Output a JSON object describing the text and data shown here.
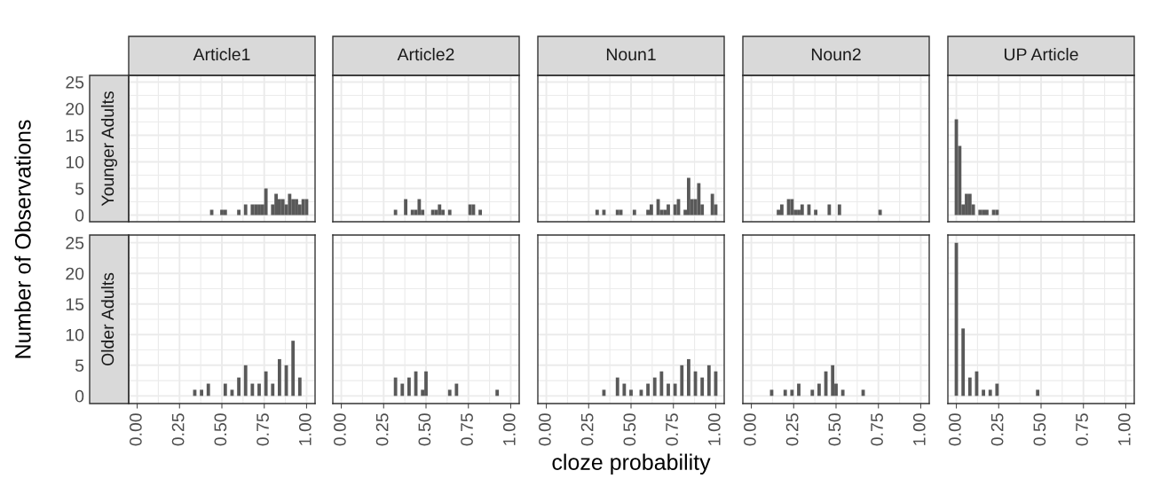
{
  "chart_data": [
    {
      "type": "histogram",
      "title": "Article1",
      "subtitle": "Younger Adults",
      "ylabel": "Number of Observations",
      "color": "#595959",
      "grid": true,
      "tick_labels": "y",
      "xlim": [
        -0.05,
        1.05
      ],
      "ylim": [
        -1.25,
        26.25
      ],
      "xticks": [
        0,
        0.25,
        0.5,
        0.75,
        1
      ],
      "yticks": [
        0,
        5,
        10,
        15,
        20,
        25
      ],
      "bins": [
        -0.01,
        0.01,
        0.03,
        0.05,
        0.07,
        0.09,
        0.11,
        0.13,
        0.15,
        0.17,
        0.19,
        0.21,
        0.23,
        0.25,
        0.27,
        0.29,
        0.31,
        0.33,
        0.35,
        0.37,
        0.39,
        0.41,
        0.43,
        0.45,
        0.47,
        0.49,
        0.51,
        0.53,
        0.55,
        0.57,
        0.59,
        0.61,
        0.63,
        0.65,
        0.67,
        0.69,
        0.71,
        0.73,
        0.75,
        0.77,
        0.79,
        0.81,
        0.83,
        0.85,
        0.87,
        0.89,
        0.91,
        0.93,
        0.95,
        0.97,
        0.99,
        1.01
      ],
      "values": [
        0,
        0,
        0,
        0,
        0,
        0,
        0,
        0,
        0,
        0,
        0,
        0,
        0,
        0,
        0,
        0,
        0,
        0,
        0,
        0,
        0,
        0,
        1,
        0,
        0,
        1,
        1,
        0,
        0,
        0,
        1,
        0,
        2,
        0,
        2,
        2,
        2,
        2,
        5,
        0,
        2,
        4,
        3,
        3,
        2,
        4,
        3,
        3,
        2,
        3,
        3
      ]
    },
    {
      "type": "histogram",
      "title": "Article2",
      "color": "#595959",
      "grid": true,
      "tick_labels": false,
      "xlim": [
        -0.05,
        1.05
      ],
      "ylim": [
        -1.25,
        26.25
      ],
      "xticks": [
        0,
        0.25,
        0.5,
        0.75,
        1
      ],
      "yticks": [
        0,
        5,
        10,
        15,
        20,
        25
      ],
      "bins": [
        -0.01,
        0.01,
        0.03,
        0.05,
        0.07,
        0.09,
        0.11,
        0.13,
        0.15,
        0.17,
        0.19,
        0.21,
        0.23,
        0.25,
        0.27,
        0.29,
        0.31,
        0.33,
        0.35,
        0.37,
        0.39,
        0.41,
        0.43,
        0.45,
        0.47,
        0.49,
        0.51,
        0.53,
        0.55,
        0.57,
        0.59,
        0.61,
        0.63,
        0.65,
        0.67,
        0.69,
        0.71,
        0.73,
        0.75,
        0.77,
        0.79,
        0.81,
        0.83,
        0.85,
        0.87,
        0.89,
        0.91,
        0.93,
        0.95,
        0.97,
        0.99,
        1.01
      ],
      "values": [
        0,
        0,
        0,
        0,
        0,
        0,
        0,
        0,
        0,
        0,
        0,
        0,
        0,
        0,
        0,
        0,
        1,
        0,
        0,
        3,
        0,
        1,
        1,
        3,
        1,
        0,
        0,
        1,
        1,
        2,
        1,
        0,
        1,
        0,
        0,
        0,
        0,
        0,
        2,
        2,
        0,
        1,
        0,
        0,
        0,
        0,
        0,
        0,
        0,
        0,
        0
      ]
    },
    {
      "type": "histogram",
      "title": "Noun1",
      "color": "#595959",
      "grid": true,
      "tick_labels": false,
      "xlim": [
        -0.05,
        1.05
      ],
      "ylim": [
        -1.25,
        26.25
      ],
      "xticks": [
        0,
        0.25,
        0.5,
        0.75,
        1
      ],
      "yticks": [
        0,
        5,
        10,
        15,
        20,
        25
      ],
      "bins": [
        -0.01,
        0.01,
        0.03,
        0.05,
        0.07,
        0.09,
        0.11,
        0.13,
        0.15,
        0.17,
        0.19,
        0.21,
        0.23,
        0.25,
        0.27,
        0.29,
        0.31,
        0.33,
        0.35,
        0.37,
        0.39,
        0.41,
        0.43,
        0.45,
        0.47,
        0.49,
        0.51,
        0.53,
        0.55,
        0.57,
        0.59,
        0.61,
        0.63,
        0.65,
        0.67,
        0.69,
        0.71,
        0.73,
        0.75,
        0.77,
        0.79,
        0.81,
        0.83,
        0.85,
        0.87,
        0.89,
        0.91,
        0.93,
        0.95,
        0.97,
        0.99,
        1.01
      ],
      "values": [
        0,
        0,
        0,
        0,
        0,
        0,
        0,
        0,
        0,
        0,
        0,
        0,
        0,
        0,
        0,
        1,
        0,
        1,
        0,
        0,
        0,
        1,
        1,
        0,
        0,
        0,
        1,
        0,
        0,
        0,
        1,
        2,
        0,
        3,
        1,
        1,
        2,
        0,
        2,
        3,
        0,
        1,
        7,
        3,
        3,
        6,
        2,
        0,
        0,
        4,
        2
      ]
    },
    {
      "type": "histogram",
      "title": "Noun2",
      "color": "#595959",
      "grid": true,
      "tick_labels": false,
      "xlim": [
        -0.05,
        1.05
      ],
      "ylim": [
        -1.25,
        26.25
      ],
      "xticks": [
        0,
        0.25,
        0.5,
        0.75,
        1
      ],
      "yticks": [
        0,
        5,
        10,
        15,
        20,
        25
      ],
      "bins": [
        -0.01,
        0.01,
        0.03,
        0.05,
        0.07,
        0.09,
        0.11,
        0.13,
        0.15,
        0.17,
        0.19,
        0.21,
        0.23,
        0.25,
        0.27,
        0.29,
        0.31,
        0.33,
        0.35,
        0.37,
        0.39,
        0.41,
        0.43,
        0.45,
        0.47,
        0.49,
        0.51,
        0.53,
        0.55,
        0.57,
        0.59,
        0.61,
        0.63,
        0.65,
        0.67,
        0.69,
        0.71,
        0.73,
        0.75,
        0.77,
        0.79,
        0.81,
        0.83,
        0.85,
        0.87,
        0.89,
        0.91,
        0.93,
        0.95,
        0.97,
        0.99,
        1.01
      ],
      "values": [
        0,
        0,
        0,
        0,
        0,
        0,
        0,
        0,
        1,
        2,
        0,
        3,
        3,
        1,
        1,
        2,
        0,
        2,
        0,
        1,
        0,
        0,
        0,
        2,
        0,
        0,
        2,
        0,
        0,
        0,
        0,
        0,
        0,
        0,
        0,
        0,
        0,
        0,
        1,
        0,
        0,
        0,
        0,
        0,
        0,
        0,
        0,
        0,
        0,
        0,
        0
      ]
    },
    {
      "type": "histogram",
      "title": "UP Article",
      "color": "#595959",
      "grid": true,
      "tick_labels": false,
      "xlim": [
        -0.05,
        1.05
      ],
      "ylim": [
        -1.25,
        26.25
      ],
      "xticks": [
        0,
        0.25,
        0.5,
        0.75,
        1
      ],
      "yticks": [
        0,
        5,
        10,
        15,
        20,
        25
      ],
      "bins": [
        -0.01,
        0.01,
        0.03,
        0.05,
        0.07,
        0.09,
        0.11,
        0.13,
        0.15,
        0.17,
        0.19,
        0.21,
        0.23,
        0.25,
        0.27,
        0.29,
        0.31,
        0.33,
        0.35,
        0.37,
        0.39,
        0.41,
        0.43,
        0.45,
        0.47,
        0.49,
        0.51,
        0.53,
        0.55,
        0.57,
        0.59,
        0.61,
        0.63,
        0.65,
        0.67,
        0.69,
        0.71,
        0.73,
        0.75,
        0.77,
        0.79,
        0.81,
        0.83,
        0.85,
        0.87,
        0.89,
        0.91,
        0.93,
        0.95,
        0.97,
        0.99,
        1.01
      ],
      "values": [
        18,
        13,
        2,
        4,
        4,
        2,
        0,
        1,
        1,
        1,
        0,
        1,
        1,
        0,
        0,
        0,
        0,
        0,
        0,
        0,
        0,
        0,
        0,
        0,
        0,
        0,
        0,
        0,
        0,
        0,
        0,
        0,
        0,
        0,
        0,
        0,
        0,
        0,
        0,
        0,
        0,
        0,
        0,
        0,
        0,
        0,
        0,
        0,
        0,
        0,
        0
      ]
    },
    {
      "type": "histogram",
      "subtitle": "Older Adults",
      "color": "#595959",
      "grid": true,
      "xlim": [
        -0.05,
        1.05
      ],
      "ylim": [
        -1.25,
        26.25
      ],
      "xticks": [
        {
          "value": 0,
          "label": "0.00"
        },
        {
          "value": 0.25,
          "label": "0.25"
        },
        {
          "value": 0.5,
          "label": "0.50"
        },
        {
          "value": 0.75,
          "label": "0.75"
        },
        {
          "value": 1,
          "label": "1.00"
        }
      ],
      "yticks": [
        0,
        5,
        10,
        15,
        20,
        25
      ],
      "bins": [
        -0.01,
        0.01,
        0.03,
        0.05,
        0.07,
        0.09,
        0.11,
        0.13,
        0.15,
        0.17,
        0.19,
        0.21,
        0.23,
        0.25,
        0.27,
        0.29,
        0.31,
        0.33,
        0.35,
        0.37,
        0.39,
        0.41,
        0.43,
        0.45,
        0.47,
        0.49,
        0.51,
        0.53,
        0.55,
        0.57,
        0.59,
        0.61,
        0.63,
        0.65,
        0.67,
        0.69,
        0.71,
        0.73,
        0.75,
        0.77,
        0.79,
        0.81,
        0.83,
        0.85,
        0.87,
        0.89,
        0.91,
        0.93,
        0.95,
        0.97,
        0.99,
        1.01
      ],
      "values": [
        0,
        0,
        0,
        0,
        0,
        0,
        0,
        0,
        0,
        0,
        0,
        0,
        0,
        0,
        0,
        0,
        0,
        1,
        0,
        1,
        0,
        2,
        0,
        0,
        0,
        0,
        2,
        0,
        1,
        0,
        3,
        0,
        5,
        0,
        2,
        0,
        2,
        0,
        4,
        0,
        2,
        0,
        6,
        0,
        5,
        0,
        9,
        0,
        3,
        0,
        0
      ]
    },
    {
      "type": "histogram",
      "color": "#595959",
      "grid": true,
      "tick_labels": "x",
      "xlim": [
        -0.05,
        1.05
      ],
      "ylim": [
        -1.25,
        26.25
      ],
      "xticks": [
        {
          "value": 0,
          "label": "0.00"
        },
        {
          "value": 0.25,
          "label": "0.25"
        },
        {
          "value": 0.5,
          "label": "0.50"
        },
        {
          "value": 0.75,
          "label": "0.75"
        },
        {
          "value": 1,
          "label": "1.00"
        }
      ],
      "yticks": [
        0,
        5,
        10,
        15,
        20,
        25
      ],
      "bins": [
        -0.01,
        0.01,
        0.03,
        0.05,
        0.07,
        0.09,
        0.11,
        0.13,
        0.15,
        0.17,
        0.19,
        0.21,
        0.23,
        0.25,
        0.27,
        0.29,
        0.31,
        0.33,
        0.35,
        0.37,
        0.39,
        0.41,
        0.43,
        0.45,
        0.47,
        0.49,
        0.51,
        0.53,
        0.55,
        0.57,
        0.59,
        0.61,
        0.63,
        0.65,
        0.67,
        0.69,
        0.71,
        0.73,
        0.75,
        0.77,
        0.79,
        0.81,
        0.83,
        0.85,
        0.87,
        0.89,
        0.91,
        0.93,
        0.95,
        0.97,
        0.99,
        1.01
      ],
      "values": [
        0,
        0,
        0,
        0,
        0,
        0,
        0,
        0,
        0,
        0,
        0,
        0,
        0,
        0,
        0,
        0,
        3,
        0,
        2,
        0,
        3,
        0,
        4,
        0,
        1,
        4,
        0,
        0,
        0,
        0,
        0,
        0,
        1,
        0,
        2,
        0,
        0,
        0,
        0,
        0,
        0,
        0,
        0,
        0,
        0,
        0,
        1,
        0,
        0,
        0,
        0
      ]
    },
    {
      "type": "histogram",
      "xlabel": "cloze probability",
      "color": "#595959",
      "grid": true,
      "tick_labels": "x",
      "xlim": [
        -0.05,
        1.05
      ],
      "ylim": [
        -1.25,
        26.25
      ],
      "xticks": [
        {
          "value": 0,
          "label": "0.00"
        },
        {
          "value": 0.25,
          "label": "0.25"
        },
        {
          "value": 0.5,
          "label": "0.50"
        },
        {
          "value": 0.75,
          "label": "0.75"
        },
        {
          "value": 1,
          "label": "1.00"
        }
      ],
      "yticks": [
        0,
        5,
        10,
        15,
        20,
        25
      ],
      "bins": [
        -0.01,
        0.01,
        0.03,
        0.05,
        0.07,
        0.09,
        0.11,
        0.13,
        0.15,
        0.17,
        0.19,
        0.21,
        0.23,
        0.25,
        0.27,
        0.29,
        0.31,
        0.33,
        0.35,
        0.37,
        0.39,
        0.41,
        0.43,
        0.45,
        0.47,
        0.49,
        0.51,
        0.53,
        0.55,
        0.57,
        0.59,
        0.61,
        0.63,
        0.65,
        0.67,
        0.69,
        0.71,
        0.73,
        0.75,
        0.77,
        0.79,
        0.81,
        0.83,
        0.85,
        0.87,
        0.89,
        0.91,
        0.93,
        0.95,
        0.97,
        0.99,
        1.01
      ],
      "values": [
        0,
        0,
        0,
        0,
        0,
        0,
        0,
        0,
        0,
        0,
        0,
        0,
        0,
        0,
        0,
        0,
        0,
        1,
        0,
        0,
        0,
        3,
        0,
        2,
        0,
        1,
        0,
        0,
        1,
        0,
        2,
        0,
        3,
        0,
        4,
        0,
        2,
        0,
        2,
        0,
        5,
        0,
        6,
        0,
        4,
        0,
        3,
        0,
        5,
        0,
        4
      ]
    },
    {
      "type": "histogram",
      "color": "#595959",
      "grid": true,
      "tick_labels": "x",
      "xlim": [
        -0.05,
        1.05
      ],
      "ylim": [
        -1.25,
        26.25
      ],
      "xticks": [
        {
          "value": 0,
          "label": "0.00"
        },
        {
          "value": 0.25,
          "label": "0.25"
        },
        {
          "value": 0.5,
          "label": "0.50"
        },
        {
          "value": 0.75,
          "label": "0.75"
        },
        {
          "value": 1,
          "label": "1.00"
        }
      ],
      "yticks": [
        0,
        5,
        10,
        15,
        20,
        25
      ],
      "bins": [
        -0.01,
        0.01,
        0.03,
        0.05,
        0.07,
        0.09,
        0.11,
        0.13,
        0.15,
        0.17,
        0.19,
        0.21,
        0.23,
        0.25,
        0.27,
        0.29,
        0.31,
        0.33,
        0.35,
        0.37,
        0.39,
        0.41,
        0.43,
        0.45,
        0.47,
        0.49,
        0.51,
        0.53,
        0.55,
        0.57,
        0.59,
        0.61,
        0.63,
        0.65,
        0.67,
        0.69,
        0.71,
        0.73,
        0.75,
        0.77,
        0.79,
        0.81,
        0.83,
        0.85,
        0.87,
        0.89,
        0.91,
        0.93,
        0.95,
        0.97,
        0.99,
        1.01
      ],
      "values": [
        0,
        0,
        0,
        0,
        0,
        0,
        1,
        0,
        0,
        0,
        1,
        0,
        1,
        0,
        2,
        0,
        0,
        0,
        1,
        0,
        2,
        0,
        4,
        0,
        5,
        2,
        0,
        1,
        0,
        0,
        0,
        0,
        0,
        1,
        0,
        0,
        0,
        0,
        0,
        0,
        0,
        0,
        0,
        0,
        0,
        0,
        0,
        0,
        0,
        0,
        0
      ]
    },
    {
      "type": "histogram",
      "color": "#595959",
      "grid": true,
      "tick_labels": "x",
      "xlim": [
        -0.05,
        1.05
      ],
      "ylim": [
        -1.25,
        26.25
      ],
      "xticks": [
        {
          "value": 0,
          "label": "0.00"
        },
        {
          "value": 0.25,
          "label": "0.25"
        },
        {
          "value": 0.5,
          "label": "0.50"
        },
        {
          "value": 0.75,
          "label": "0.75"
        },
        {
          "value": 1,
          "label": "1.00"
        }
      ],
      "yticks": [
        0,
        5,
        10,
        15,
        20,
        25
      ],
      "bins": [
        -0.01,
        0.01,
        0.03,
        0.05,
        0.07,
        0.09,
        0.11,
        0.13,
        0.15,
        0.17,
        0.19,
        0.21,
        0.23,
        0.25,
        0.27,
        0.29,
        0.31,
        0.33,
        0.35,
        0.37,
        0.39,
        0.41,
        0.43,
        0.45,
        0.47,
        0.49,
        0.51,
        0.53,
        0.55,
        0.57,
        0.59,
        0.61,
        0.63,
        0.65,
        0.67,
        0.69,
        0.71,
        0.73,
        0.75,
        0.77,
        0.79,
        0.81,
        0.83,
        0.85,
        0.87,
        0.89,
        0.91,
        0.93,
        0.95,
        0.97,
        0.99,
        1.01
      ],
      "values": [
        25,
        0,
        11,
        0,
        3,
        0,
        4,
        0,
        1,
        0,
        1,
        0,
        2,
        0,
        0,
        0,
        0,
        0,
        0,
        0,
        0,
        0,
        0,
        0,
        1,
        0,
        0,
        0,
        0,
        0,
        0,
        0,
        0,
        0,
        0,
        0,
        0,
        0,
        0,
        0,
        0,
        0,
        0,
        0,
        0,
        0,
        0,
        0,
        0,
        0,
        0
      ]
    }
  ]
}
